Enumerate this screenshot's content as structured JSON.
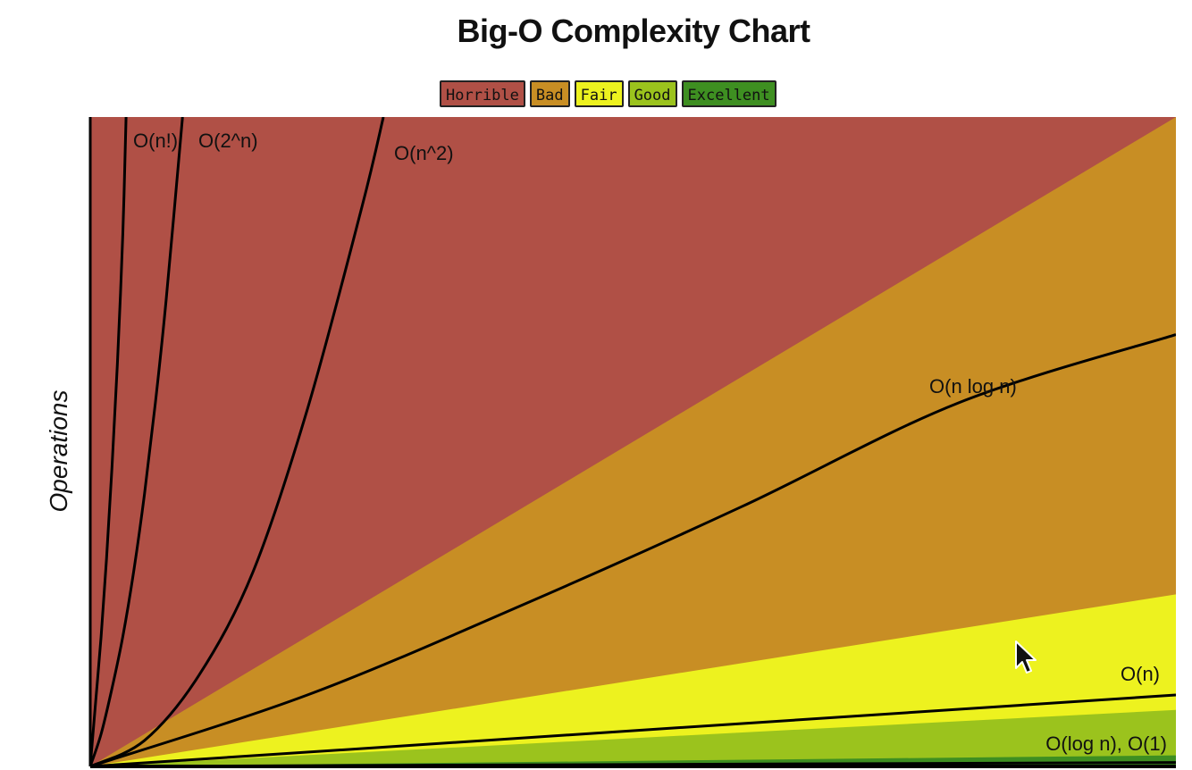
{
  "chart_data": {
    "type": "area",
    "title": "Big-O Complexity Chart",
    "xlabel": "",
    "ylabel": "Operations",
    "xlim": [
      0,
      100
    ],
    "ylim": [
      0,
      100
    ],
    "legend": {
      "position": "top-center",
      "entries": [
        {
          "label": "Horrible",
          "color": "#B05046"
        },
        {
          "label": "Bad",
          "color": "#C88E24"
        },
        {
          "label": "Fair",
          "color": "#EDF21F"
        },
        {
          "label": "Good",
          "color": "#9BC31D"
        },
        {
          "label": "Excellent",
          "color": "#3E8F21"
        }
      ]
    },
    "regions": [
      {
        "name": "Horrible",
        "color": "#B05046",
        "upper": "top",
        "lower": "Bad"
      },
      {
        "name": "Bad",
        "color": "#C88E24",
        "boundary_y_at_x100": 100
      },
      {
        "name": "Fair",
        "color": "#EDF21F",
        "boundary_y_at_x100": 26.5
      },
      {
        "name": "Good",
        "color": "#9BC31D",
        "boundary_y_at_x100": 8.7
      },
      {
        "name": "Excellent",
        "color": "#3E8F21",
        "boundary_y_at_x100": 1.7
      }
    ],
    "series": [
      {
        "name": "O(n!)",
        "x": [
          0,
          0.5,
          1,
          1.5,
          2,
          2.5,
          3,
          3.3
        ],
        "y": [
          0,
          10,
          20,
          32,
          46,
          62,
          82,
          100
        ]
      },
      {
        "name": "O(2^n)",
        "x": [
          0,
          1,
          2,
          3,
          4,
          5,
          6,
          7,
          8.5
        ],
        "y": [
          0,
          5,
          12,
          20,
          30,
          42,
          56,
          72,
          100
        ]
      },
      {
        "name": "O(n^2)",
        "x": [
          0,
          5,
          10,
          15,
          20,
          25,
          27
        ],
        "y": [
          0,
          4,
          14,
          30,
          55,
          86,
          100
        ]
      },
      {
        "name": "O(n log n)",
        "x": [
          0,
          20,
          40,
          60,
          80,
          100
        ],
        "y": [
          0,
          11,
          25,
          40,
          56,
          66.5
        ]
      },
      {
        "name": "O(n)",
        "x": [
          0,
          100
        ],
        "y": [
          0,
          11
        ]
      },
      {
        "name": "O(log n), O(1)",
        "x": [
          0,
          100
        ],
        "y": [
          0,
          0.6
        ]
      }
    ]
  }
}
